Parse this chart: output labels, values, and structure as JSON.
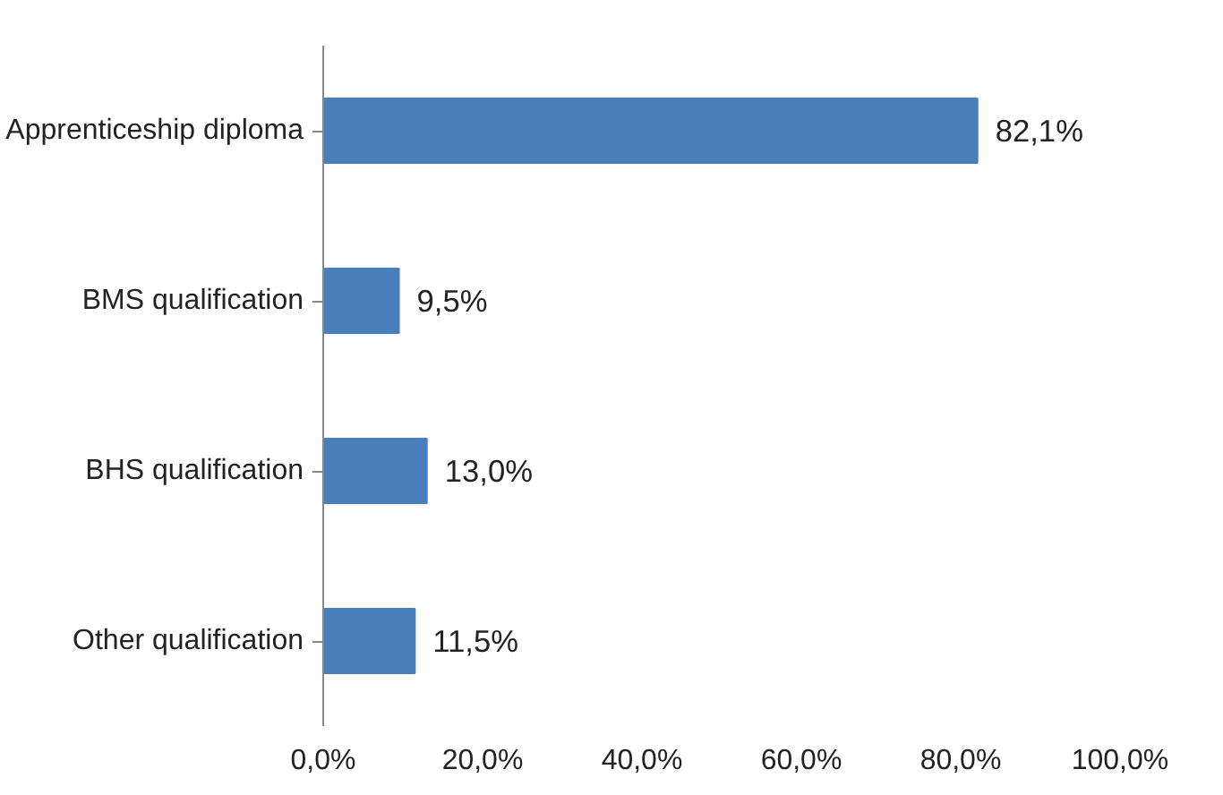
{
  "chart_data": {
    "type": "bar",
    "orientation": "horizontal",
    "categories": [
      "Apprenticeship diploma",
      "BMS qualification",
      "BHS qualification",
      "Other qualification"
    ],
    "values": [
      82.1,
      9.5,
      13.0,
      11.5
    ],
    "value_labels": [
      "82,1%",
      "9,5%",
      "13,0%",
      "11,5%"
    ],
    "color": "#4a7ebb",
    "xlim": [
      0,
      100
    ],
    "xticks": [
      {
        "value": 0,
        "label": "0,0%"
      },
      {
        "value": 20,
        "label": "20,0%"
      },
      {
        "value": 40,
        "label": "40,0%"
      },
      {
        "value": 60,
        "label": "60,0%"
      },
      {
        "value": 80,
        "label": "80,0%"
      },
      {
        "value": 100,
        "label": "100,0%"
      }
    ],
    "grid": false
  }
}
